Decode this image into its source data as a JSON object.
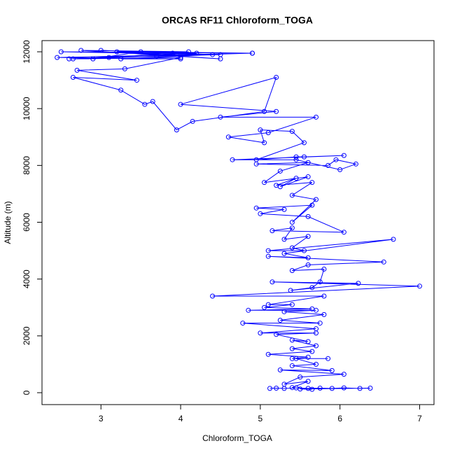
{
  "chart_data": {
    "type": "line",
    "title": "ORCAS RF11 Chloroform_TOGA",
    "x_label": "Chloroform_TOGA",
    "y_label": "Altitude (m)",
    "color": "#0000ff",
    "xlim": [
      2.26,
      7.18
    ],
    "ylim": [
      -419,
      12394
    ],
    "xticks": [
      3,
      4,
      5,
      6,
      7
    ],
    "yticks": [
      0,
      2000,
      4000,
      6000,
      8000,
      10000,
      12000
    ],
    "x": [
      5.12,
      5.2,
      5.3,
      5.45,
      5.6,
      5.75,
      5.9,
      6.05,
      6.25,
      6.38,
      5.5,
      5.65,
      5.4,
      5.6,
      5.3,
      5.5,
      6.05,
      5.25,
      5.9,
      5.4,
      5.7,
      5.45,
      5.85,
      5.4,
      5.6,
      5.1,
      5.65,
      5.4,
      5.7,
      5.4,
      5.6,
      5.2,
      5.7,
      5.0,
      5.7,
      4.78,
      5.75,
      5.25,
      5.8,
      5.3,
      5.7,
      4.85,
      5.65,
      5.05,
      5.4,
      5.1,
      5.8,
      4.4,
      7.0,
      5.15,
      6.23,
      5.38,
      5.65,
      5.75,
      5.8,
      5.4,
      5.6,
      6.55,
      5.1,
      5.6,
      5.3,
      6.67,
      5.1,
      5.55,
      5.4,
      5.6,
      5.3,
      5.4,
      5.15,
      6.05,
      5.6,
      5.0,
      5.3,
      4.95,
      5.65,
      5.4,
      5.7,
      5.4,
      5.65,
      5.2,
      5.45,
      5.25,
      5.6,
      5.05,
      5.25,
      5.6,
      4.95,
      5.85,
      5.95,
      6.2,
      6.0,
      5.45,
      4.65,
      6.05,
      5.55,
      5.45,
      4.95,
      5.55,
      5.4,
      5.0,
      5.05,
      4.6,
      5.1,
      5.7,
      4.5,
      5.2,
      4.0,
      5.2,
      5.05,
      4.15,
      3.95,
      3.65,
      3.55,
      3.25,
      2.65,
      3.45,
      2.7,
      3.3,
      4.0,
      2.65,
      3.1,
      4.5,
      2.5,
      4.9,
      3.7,
      2.6,
      4.2,
      3.0,
      4.4,
      3.25,
      4.0,
      2.45,
      4.9,
      3.5,
      2.9,
      4.1,
      2.75,
      4.5,
      3.2,
      3.9
    ],
    "values": [
      150,
      160,
      150,
      170,
      150,
      160,
      150,
      170,
      150,
      160,
      130,
      120,
      180,
      400,
      300,
      550,
      650,
      800,
      780,
      950,
      1000,
      1200,
      1200,
      1200,
      1250,
      1350,
      1450,
      1550,
      1650,
      1850,
      1800,
      2050,
      2100,
      2100,
      2250,
      2450,
      2450,
      2550,
      2750,
      2850,
      2900,
      2900,
      2950,
      3000,
      3100,
      3100,
      3400,
      3400,
      3750,
      3900,
      3850,
      3600,
      3700,
      3900,
      4350,
      4300,
      4500,
      4600,
      4800,
      4750,
      4900,
      5400,
      5000,
      5000,
      5100,
      5500,
      5400,
      5800,
      5700,
      5650,
      6200,
      6300,
      6450,
      6500,
      6600,
      6000,
      6800,
      6950,
      7400,
      7300,
      7550,
      7250,
      7600,
      7400,
      7800,
      8100,
      8050,
      8000,
      8200,
      8050,
      7850,
      8200,
      8200,
      8350,
      8300,
      8300,
      8200,
      8800,
      9200,
      9250,
      8800,
      9000,
      9150,
      9700,
      9700,
      9900,
      10150,
      11100,
      9900,
      9550,
      9250,
      10250,
      10150,
      10650,
      11100,
      11000,
      11350,
      11400,
      11800,
      11750,
      11800,
      11900,
      12000,
      11950,
      11850,
      11750,
      11950,
      12050,
      11900,
      11750,
      11750,
      11800,
      11950,
      12000,
      11750,
      12000,
      12050,
      11750,
      12000,
      11950
    ]
  }
}
